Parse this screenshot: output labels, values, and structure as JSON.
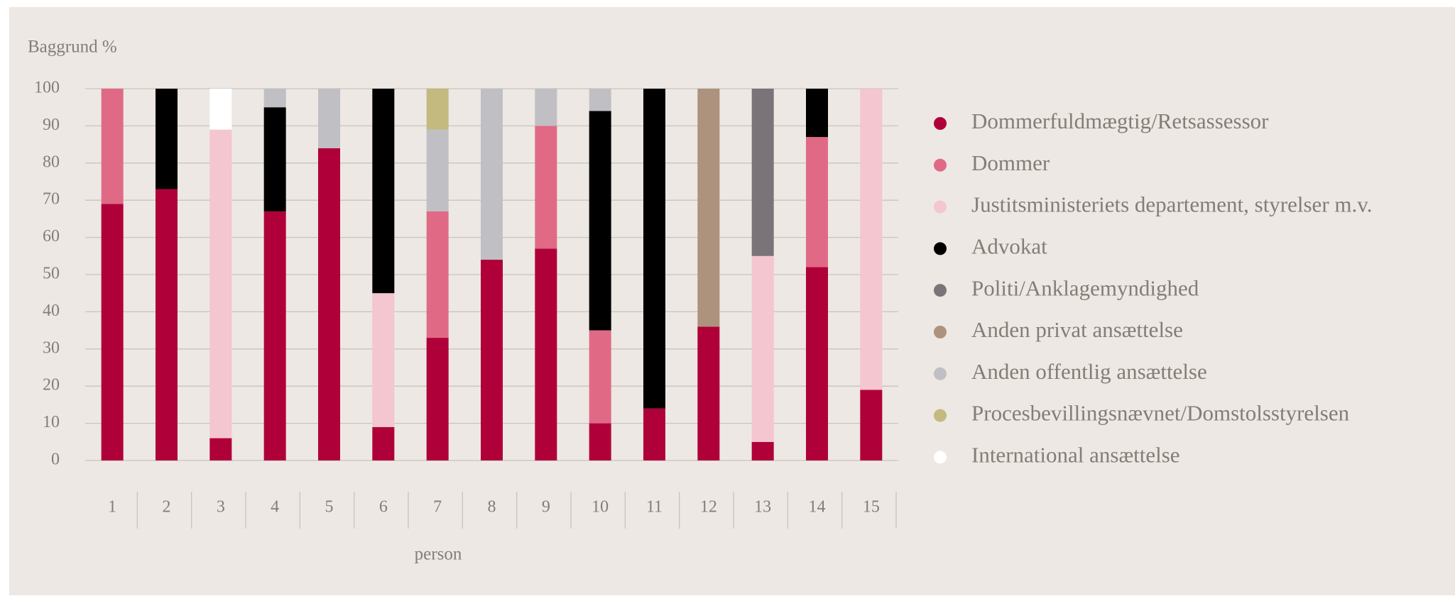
{
  "chart_data": {
    "type": "stacked_bar",
    "y_label": "Baggrund %",
    "x_label": "person",
    "categories": [
      "1",
      "2",
      "3",
      "4",
      "5",
      "6",
      "7",
      "8",
      "9",
      "10",
      "11",
      "12",
      "13",
      "14",
      "15"
    ],
    "ylim": [
      0,
      100
    ],
    "yticks": [
      0,
      10,
      20,
      30,
      40,
      50,
      60,
      70,
      80,
      90,
      100
    ],
    "grid": true,
    "legend": "right",
    "series": [
      {
        "name": "Dommerfuldmægtig/Retsassessor",
        "color": "#b0003a",
        "values": [
          69,
          73,
          6,
          67,
          84,
          9,
          33,
          54,
          57,
          10,
          14,
          36,
          5,
          52,
          19
        ]
      },
      {
        "name": "Dommer",
        "color": "#e06a85",
        "values": [
          31,
          0,
          0,
          0,
          0,
          0,
          34,
          0,
          33,
          25,
          0,
          0,
          0,
          35,
          0
        ]
      },
      {
        "name": "Justitsministeriets departement, styrelser m.v.",
        "color": "#f4c6cf",
        "values": [
          0,
          0,
          83,
          0,
          0,
          36,
          0,
          0,
          0,
          0,
          0,
          0,
          50,
          0,
          81
        ]
      },
      {
        "name": "Advokat",
        "color": "#000000",
        "values": [
          0,
          27,
          0,
          28,
          0,
          55,
          0,
          0,
          0,
          59,
          86,
          0,
          0,
          13,
          0
        ]
      },
      {
        "name": "Politi/Anklagemyndighed",
        "color": "#7a7479",
        "values": [
          0,
          0,
          0,
          0,
          0,
          0,
          0,
          0,
          0,
          0,
          0,
          0,
          45,
          0,
          0
        ]
      },
      {
        "name": "Anden privat ansættelse",
        "color": "#ad927e",
        "values": [
          0,
          0,
          0,
          0,
          0,
          0,
          0,
          0,
          0,
          0,
          0,
          64,
          0,
          0,
          0
        ]
      },
      {
        "name": "Anden offentlig ansættelse",
        "color": "#c0bfc3",
        "values": [
          0,
          0,
          0,
          5,
          16,
          0,
          22,
          46,
          10,
          6,
          0,
          0,
          0,
          0,
          0
        ]
      },
      {
        "name": "Procesbevillingsnævnet/Domstolsstyrelsen",
        "color": "#c4b97f",
        "values": [
          0,
          0,
          0,
          0,
          0,
          0,
          11,
          0,
          0,
          0,
          0,
          0,
          0,
          0,
          0
        ]
      },
      {
        "name": "International ansættelse",
        "color": "#ffffff",
        "values": [
          0,
          0,
          11,
          0,
          0,
          0,
          0,
          0,
          0,
          0,
          0,
          0,
          0,
          0,
          0
        ]
      }
    ]
  }
}
